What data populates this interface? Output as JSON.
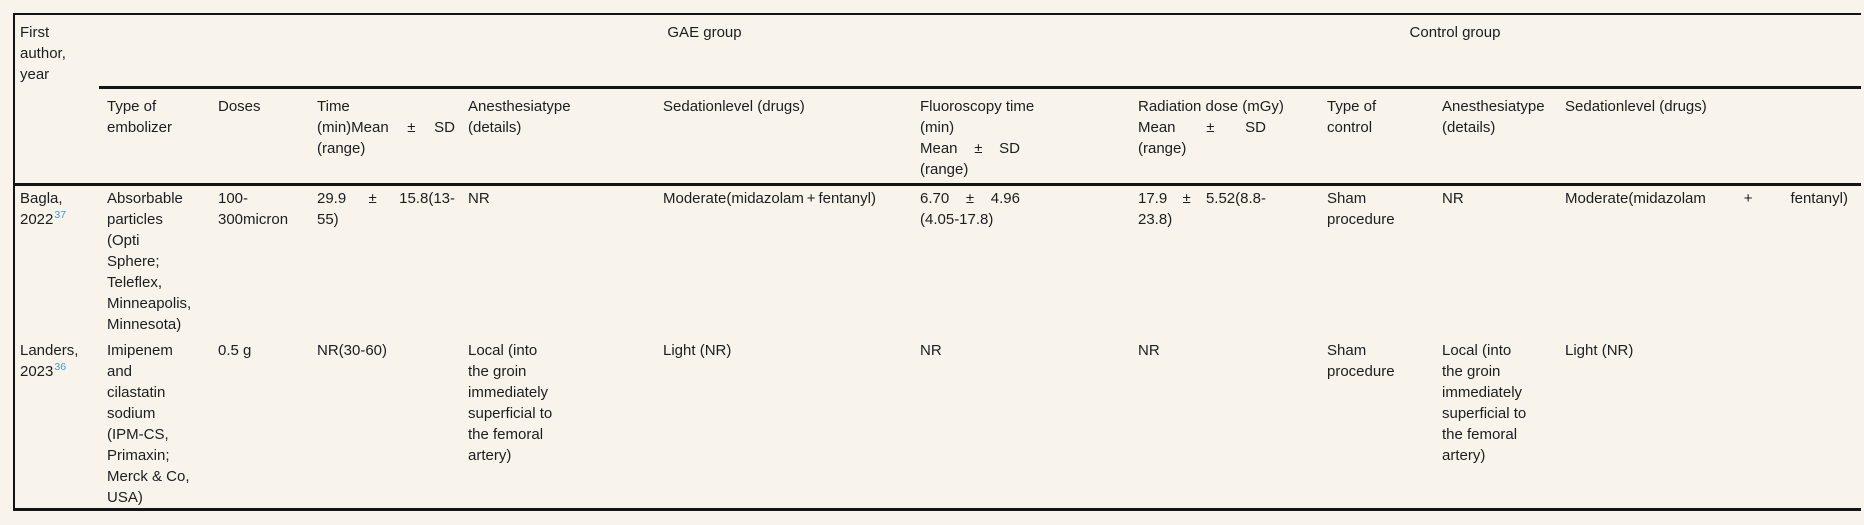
{
  "colors": {
    "background": "#f8f4ec",
    "rule": "#141414",
    "text": "#1d1d1d",
    "citation_link": "#3e9bd6"
  },
  "table": {
    "group_headers": {
      "gae": "GAE group",
      "control": "Control group"
    },
    "first_author_header": [
      {
        "t": "First"
      },
      {
        "t": "author,"
      },
      {
        "t": "year"
      }
    ],
    "columns": [
      {
        "id": "embolizer-type",
        "group": "gae",
        "header": [
          {
            "t": "Type of"
          },
          {
            "t": "embolizer"
          }
        ]
      },
      {
        "id": "doses",
        "group": "gae",
        "header": [
          {
            "t": "Doses"
          }
        ]
      },
      {
        "id": "time",
        "group": "gae",
        "header": [
          {
            "t": "Time"
          },
          {
            "s": [
              "(min)Mean",
              "±",
              "SD"
            ]
          },
          {
            "t": "(range)"
          }
        ]
      },
      {
        "id": "anesthesia-gae",
        "group": "gae",
        "header": [
          {
            "t": "Anesthesiatype"
          },
          {
            "t": "(details)"
          }
        ]
      },
      {
        "id": "sedation-gae",
        "group": "gae",
        "header": [
          {
            "t": "Sedationlevel (drugs)"
          }
        ]
      },
      {
        "id": "fluoroscopy-time",
        "group": "gae",
        "header": [
          {
            "t": "Fluoroscopy time"
          },
          {
            "t": "(min)"
          },
          {
            "s": [
              "Mean",
              "±",
              "SD"
            ]
          },
          {
            "t": "(range)"
          }
        ]
      },
      {
        "id": "radiation-dose",
        "group": "gae",
        "header": [
          {
            "t": "Radiation dose (mGy)"
          },
          {
            "s": [
              "Mean",
              "±",
              "SD"
            ]
          },
          {
            "t": "(range)"
          }
        ]
      },
      {
        "id": "control-type",
        "group": "control",
        "header": [
          {
            "t": "Type of"
          },
          {
            "t": "control"
          }
        ]
      },
      {
        "id": "anesthesia-control",
        "group": "control",
        "header": [
          {
            "t": "Anesthesiatype"
          },
          {
            "t": "(details)"
          }
        ]
      },
      {
        "id": "sedation-control",
        "group": "control",
        "header": [
          {
            "t": "Sedationlevel (drugs)"
          }
        ]
      }
    ],
    "rows": [
      {
        "id": "bagla-2022",
        "author": [
          {
            "t": "Bagla,"
          },
          {
            "t": "2022",
            "sup": "37"
          }
        ],
        "cells": [
          [
            {
              "t": "Absorbable"
            },
            {
              "t": "particles"
            },
            {
              "t": "(Opti"
            },
            {
              "t": "Sphere;"
            },
            {
              "t": "Teleflex,"
            },
            {
              "t": "Minneapolis,"
            },
            {
              "t": "Minnesota)"
            }
          ],
          [
            {
              "t": "100-"
            },
            {
              "t": "300micron"
            }
          ],
          [
            {
              "s": [
                "29.9",
                "±",
                "15.8(13-"
              ]
            },
            {
              "t": "55)"
            }
          ],
          [
            {
              "t": "NR"
            }
          ],
          [
            {
              "s": [
                "Moderate(midazolam",
                "+",
                "fentanyl)"
              ]
            }
          ],
          [
            {
              "s": [
                "6.70",
                "±",
                "4.96"
              ]
            },
            {
              "t": "(4.05-17.8)"
            }
          ],
          [
            {
              "s": [
                "17.9",
                "±",
                "5.52(8.8-"
              ]
            },
            {
              "t": "23.8)"
            }
          ],
          [
            {
              "t": "Sham"
            },
            {
              "t": "procedure"
            }
          ],
          [
            {
              "t": "NR"
            }
          ],
          [
            {
              "s": [
                "Moderate(midazolam",
                "+",
                "fentanyl)"
              ]
            }
          ]
        ]
      },
      {
        "id": "landers-2023",
        "author": [
          {
            "t": "Landers,"
          },
          {
            "t": "2023",
            "sup": "36"
          }
        ],
        "cells": [
          [
            {
              "t": "Imipenem"
            },
            {
              "t": "and"
            },
            {
              "t": "cilastatin"
            },
            {
              "t": "sodium"
            },
            {
              "t": "(IPM-CS,"
            },
            {
              "t": "Primaxin;"
            },
            {
              "t": "Merck & Co,"
            },
            {
              "t": "USA)"
            }
          ],
          [
            {
              "t": "0.5 g"
            }
          ],
          [
            {
              "t": "NR(30-60)"
            }
          ],
          [
            {
              "t": "Local (into"
            },
            {
              "t": "the groin"
            },
            {
              "t": "immediately"
            },
            {
              "t": "superficial to"
            },
            {
              "t": "the femoral"
            },
            {
              "t": "artery)"
            }
          ],
          [
            {
              "t": "Light (NR)"
            }
          ],
          [
            {
              "t": "NR"
            }
          ],
          [
            {
              "t": "NR"
            }
          ],
          [
            {
              "t": "Sham"
            },
            {
              "t": "procedure"
            }
          ],
          [
            {
              "t": "Local (into"
            },
            {
              "t": "the groin"
            },
            {
              "t": "immediately"
            },
            {
              "t": "superficial to"
            },
            {
              "t": "the femoral"
            },
            {
              "t": "artery)"
            }
          ],
          [
            {
              "t": "Light (NR)"
            }
          ]
        ]
      }
    ]
  }
}
